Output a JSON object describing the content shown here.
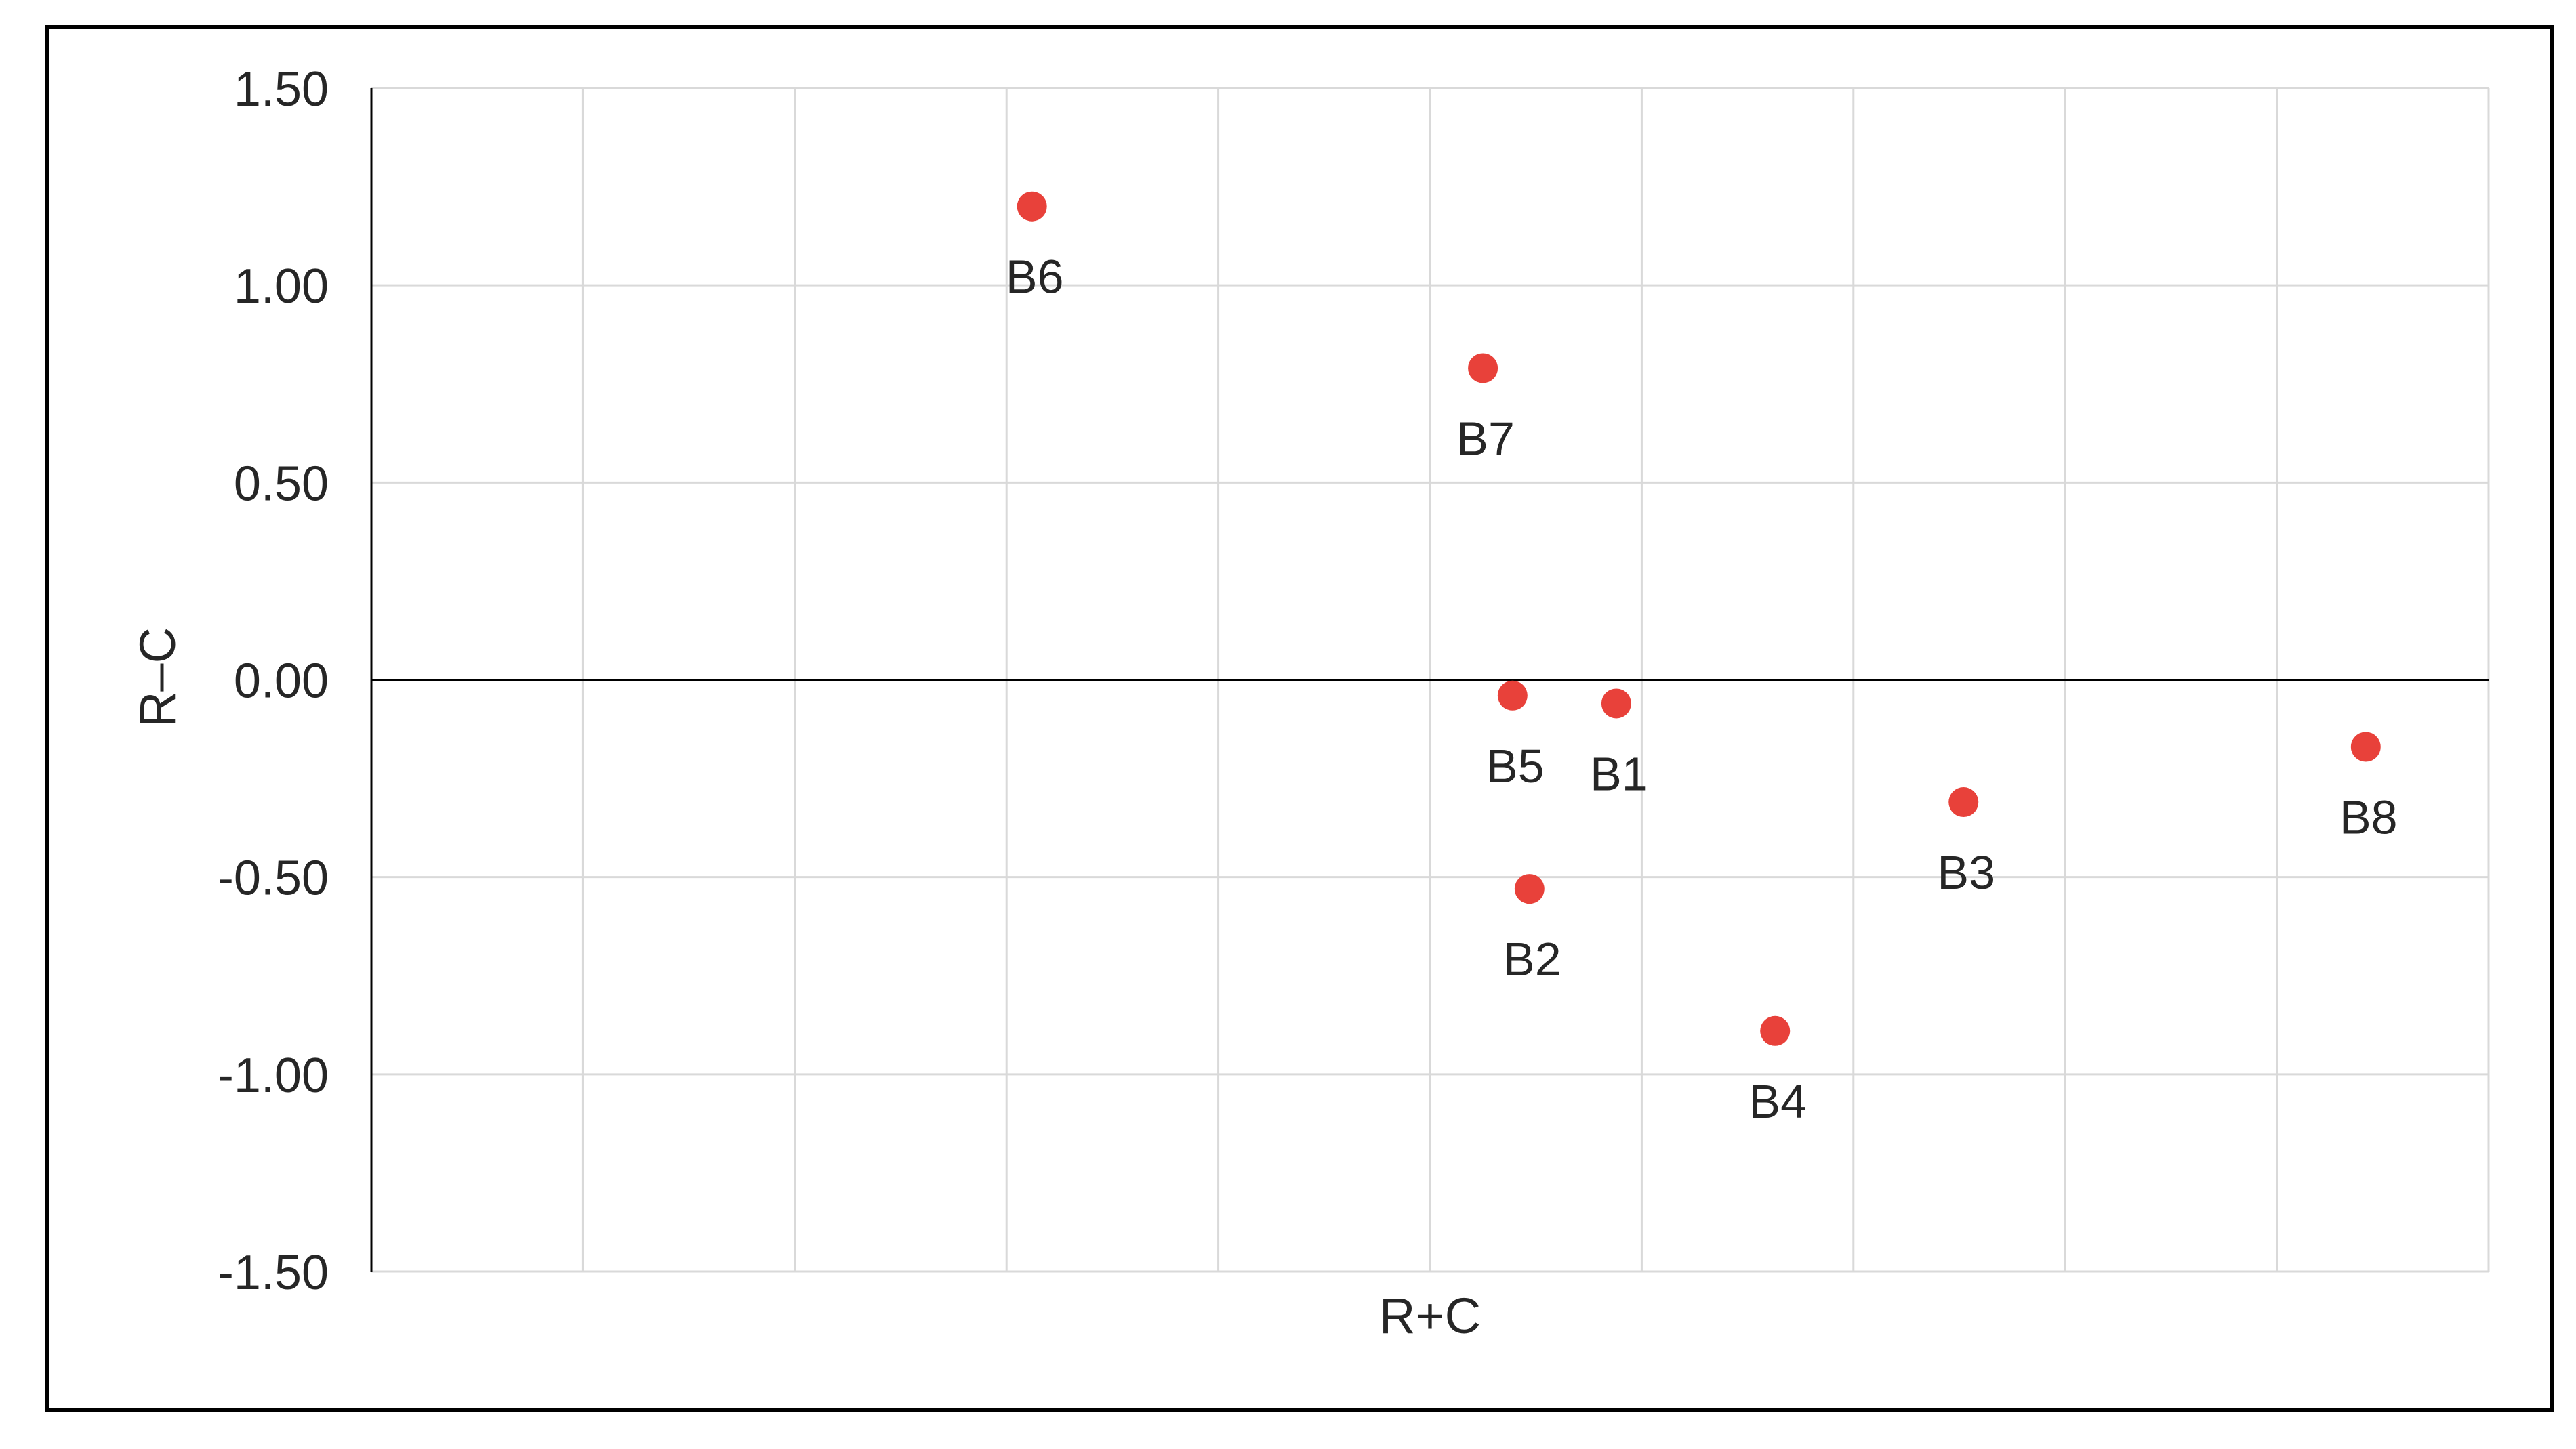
{
  "chart_data": {
    "type": "scatter",
    "title": "",
    "xlabel": "R+C",
    "ylabel": "R–C",
    "ylim": [
      -1.5,
      1.5
    ],
    "y_ticks": [
      "1.50",
      "1.00",
      "0.50",
      "0.00",
      "-0.50",
      "-1.00",
      "-1.50"
    ],
    "x_axis_tick_labels_visible": false,
    "grid": true,
    "legend": "none",
    "series": [
      {
        "color": "#e8413a",
        "points": [
          {
            "label": "B6",
            "x": 3.12,
            "y": 1.2
          },
          {
            "label": "B7",
            "x": 5.25,
            "y": 0.79
          },
          {
            "label": "B5",
            "x": 5.39,
            "y": -0.04
          },
          {
            "label": "B1",
            "x": 5.88,
            "y": -0.06
          },
          {
            "label": "B2",
            "x": 5.47,
            "y": -0.53
          },
          {
            "label": "B4",
            "x": 6.63,
            "y": -0.89
          },
          {
            "label": "B3",
            "x": 7.52,
            "y": -0.31
          },
          {
            "label": "B8",
            "x": 9.42,
            "y": -0.17
          }
        ]
      }
    ]
  },
  "colors": {
    "point": "#e8413a",
    "grid": "#d9d9d9",
    "axis": "#000000",
    "frame": "#000000",
    "text": "#262626"
  }
}
